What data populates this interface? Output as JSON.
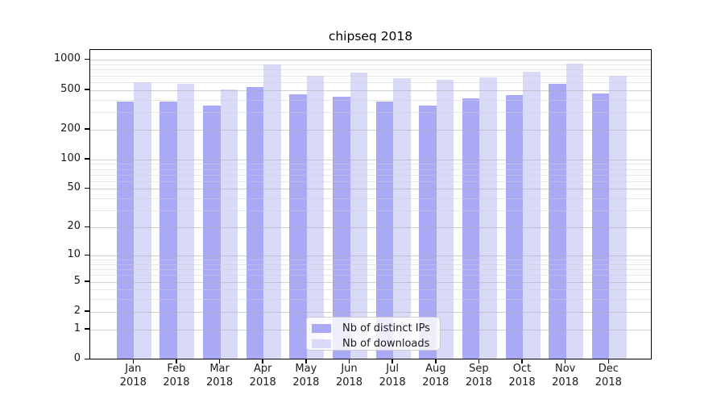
{
  "title": "chipseq 2018",
  "legend": {
    "items": [
      {
        "label": "Nb of distinct IPs",
        "color": "#a9a9f6"
      },
      {
        "label": "Nb of downloads",
        "color": "#d9d9f8"
      }
    ],
    "position": "lower center"
  },
  "chart_data": {
    "type": "bar",
    "title": "chipseq 2018",
    "x_months": [
      "Jan",
      "Feb",
      "Mar",
      "Apr",
      "May",
      "Jun",
      "Jul",
      "Aug",
      "Sep",
      "Oct",
      "Nov",
      "Dec"
    ],
    "x_year": "2018",
    "categories": [
      "Jan 2018",
      "Feb 2018",
      "Mar 2018",
      "Apr 2018",
      "May 2018",
      "Jun 2018",
      "Jul 2018",
      "Aug 2018",
      "Sep 2018",
      "Oct 2018",
      "Nov 2018",
      "Dec 2018"
    ],
    "series": [
      {
        "name": "Nb of distinct IPs",
        "color": "#a9a9f6",
        "values": [
          380,
          380,
          350,
          530,
          455,
          425,
          385,
          350,
          410,
          440,
          580,
          460
        ]
      },
      {
        "name": "Nb of downloads",
        "color": "#d9d9f8",
        "values": [
          600,
          575,
          505,
          900,
          690,
          745,
          655,
          635,
          670,
          760,
          920,
          700
        ]
      }
    ],
    "yscale": "log1p",
    "y_major_ticks": [
      0,
      1,
      2,
      5,
      10,
      20,
      50,
      100,
      200,
      500,
      1000
    ],
    "y_minor_ticks": [
      3,
      4,
      6,
      7,
      8,
      9,
      30,
      40,
      60,
      70,
      80,
      90,
      300,
      400,
      600,
      700,
      800,
      900
    ],
    "ylim": [
      0,
      1250
    ],
    "xlabel": "",
    "ylabel": "",
    "grid": true,
    "legend_position": "lower center"
  },
  "colors": {
    "bar_distinct_ips": "#a9a9f6",
    "bar_downloads": "#d9d9f8",
    "grid_major": "#ababab",
    "grid_minor": "#cfcfd6",
    "spine": "#000000",
    "text": "#1a1a1a",
    "background": "#ffffff"
  }
}
